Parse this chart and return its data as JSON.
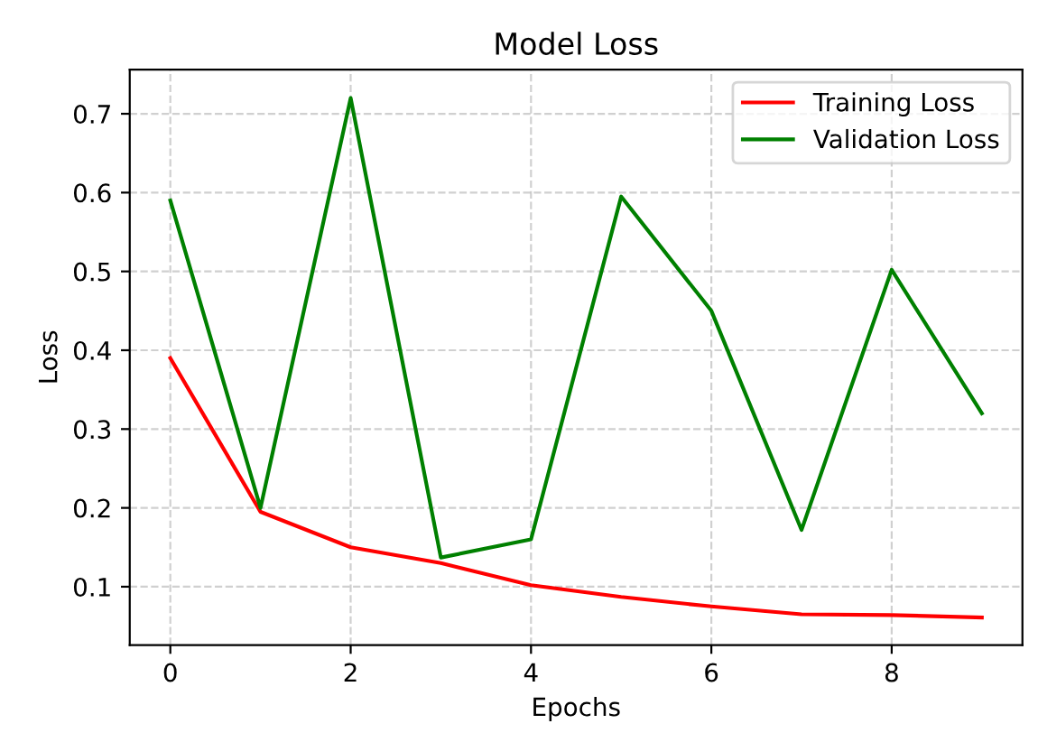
{
  "chart_data": {
    "type": "line",
    "title": "Model Loss",
    "xlabel": "Epochs",
    "ylabel": "Loss",
    "x": [
      0,
      1,
      2,
      3,
      4,
      5,
      6,
      7,
      8,
      9
    ],
    "series": [
      {
        "name": "Training Loss",
        "color": "#ff0000",
        "values": [
          0.39,
          0.195,
          0.15,
          0.13,
          0.102,
          0.087,
          0.075,
          0.065,
          0.064,
          0.061
        ]
      },
      {
        "name": "Validation Loss",
        "color": "#008000",
        "values": [
          0.59,
          0.2,
          0.72,
          0.137,
          0.16,
          0.595,
          0.45,
          0.172,
          0.502,
          0.32
        ]
      }
    ],
    "xlim": [
      -0.45,
      9.45
    ],
    "xticks": [
      0,
      2,
      4,
      6,
      8
    ],
    "ylim": [
      0.026,
      0.756
    ],
    "yticks": [
      0.1,
      0.2,
      0.3,
      0.4,
      0.5,
      0.6,
      0.7
    ],
    "grid": true,
    "legend": "top right",
    "line_style": "solid",
    "marker": "none"
  }
}
